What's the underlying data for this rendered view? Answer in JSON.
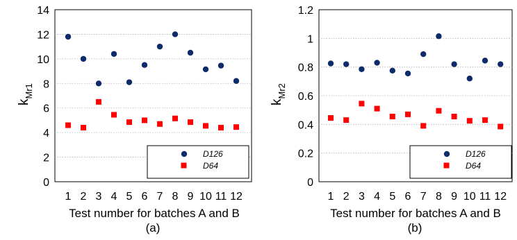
{
  "chart_data": [
    {
      "type": "scatter",
      "panel": "(a)",
      "ylabel_main": "k",
      "ylabel_sub": "Mr1",
      "xlabel": "Test number for batches A and B",
      "categories": [
        "1",
        "2",
        "3",
        "4",
        "5",
        "6",
        "7",
        "8",
        "9",
        "10",
        "11",
        "12"
      ],
      "ylim": [
        0,
        14
      ],
      "yticks": [
        0,
        2,
        4,
        6,
        8,
        10,
        12,
        14
      ],
      "ytick_labels": [
        "0",
        "2",
        "4",
        "6",
        "8",
        "10",
        "12",
        "14"
      ],
      "grid": "horizontal dotted",
      "legend_position": "bottom-right",
      "series": [
        {
          "name": "D126",
          "color": "#0d2a6b",
          "marker": "circle",
          "values": [
            11.8,
            10.0,
            8.0,
            10.4,
            8.1,
            9.5,
            11.0,
            12.0,
            10.5,
            9.15,
            9.45,
            8.2
          ]
        },
        {
          "name": "D64",
          "color": "#ff0000",
          "marker": "square",
          "values": [
            4.6,
            4.4,
            6.5,
            5.45,
            4.85,
            5.0,
            4.7,
            5.15,
            4.85,
            4.55,
            4.4,
            4.45
          ]
        }
      ]
    },
    {
      "type": "scatter",
      "panel": "(b)",
      "ylabel_main": "k",
      "ylabel_sub": "Mr2",
      "xlabel": "Test number for batches A and B",
      "categories": [
        "1",
        "2",
        "3",
        "4",
        "5",
        "6",
        "7",
        "8",
        "9",
        "10",
        "11",
        "12"
      ],
      "ylim": [
        0,
        1.2
      ],
      "yticks": [
        0,
        0.2,
        0.4,
        0.6,
        0.8,
        1.0,
        1.2
      ],
      "ytick_labels": [
        "0",
        "0.2",
        "0.4",
        "0.6",
        "0.8",
        "1",
        "1.2"
      ],
      "grid": "horizontal dotted",
      "legend_position": "bottom-right",
      "series": [
        {
          "name": "D126",
          "color": "#0d2a6b",
          "marker": "circle",
          "values": [
            0.825,
            0.82,
            0.785,
            0.83,
            0.775,
            0.755,
            0.89,
            1.015,
            0.82,
            0.72,
            0.845,
            0.82
          ]
        },
        {
          "name": "D64",
          "color": "#ff0000",
          "marker": "square",
          "values": [
            0.445,
            0.43,
            0.545,
            0.51,
            0.455,
            0.47,
            0.39,
            0.495,
            0.455,
            0.425,
            0.43,
            0.385
          ]
        }
      ]
    }
  ]
}
